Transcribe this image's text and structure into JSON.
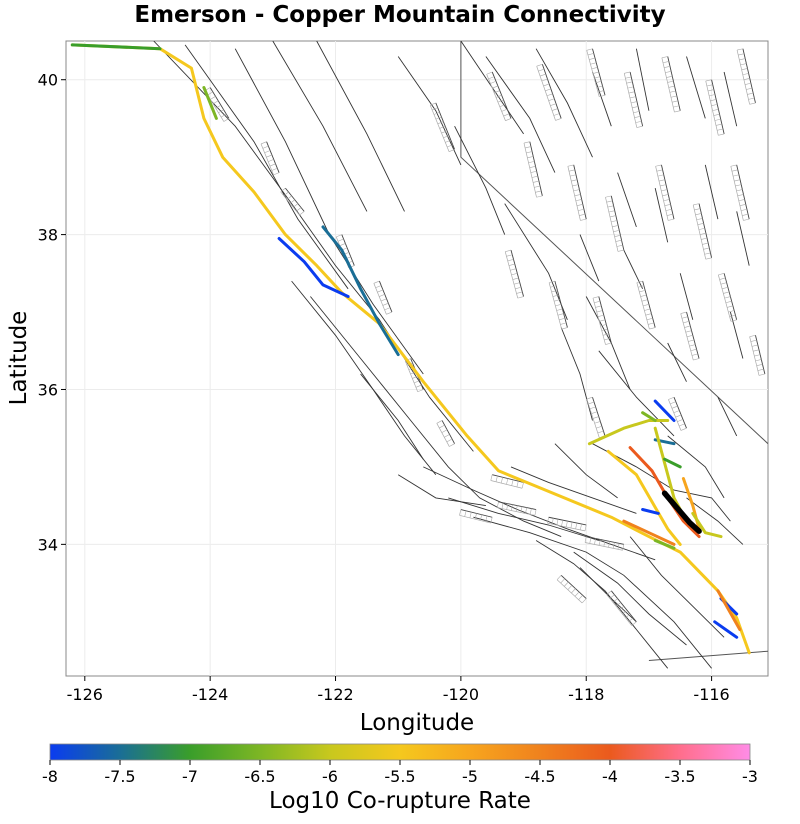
{
  "title": "Emerson - Copper Mountain Connectivity",
  "x_axis": {
    "label": "Longitude",
    "ticks": [
      "-126",
      "-124",
      "-122",
      "-120",
      "-118",
      "-116"
    ],
    "tick_values": [
      -126,
      -124,
      -122,
      -120,
      -118,
      -116
    ],
    "range": [
      -126.3,
      -115.1
    ]
  },
  "y_axis": {
    "label": "Latitude",
    "ticks": [
      "34",
      "36",
      "38",
      "40"
    ],
    "tick_values": [
      34,
      36,
      38,
      40
    ],
    "range": [
      32.3,
      40.5
    ]
  },
  "colorbar": {
    "label": "Log10 Co-rupture Rate",
    "ticks": [
      "-8",
      "-7.5",
      "-7",
      "-6.5",
      "-6",
      "-5.5",
      "-5",
      "-4.5",
      "-4",
      "-3.5",
      "-3"
    ],
    "tick_values": [
      -8,
      -7.5,
      -7,
      -6.5,
      -6,
      -5.5,
      -5,
      -4.5,
      -4,
      -3.5,
      -3
    ],
    "range": [
      -8,
      -3
    ],
    "stops": [
      {
        "v": -8,
        "color": "#0a3cf0"
      },
      {
        "v": -7.5,
        "color": "#1a6e96"
      },
      {
        "v": -7,
        "color": "#3a9e2a"
      },
      {
        "v": -6.5,
        "color": "#7db624"
      },
      {
        "v": -6,
        "color": "#c8c81e"
      },
      {
        "v": -5.5,
        "color": "#f5c81e"
      },
      {
        "v": -5,
        "color": "#f7a51e"
      },
      {
        "v": -4.5,
        "color": "#f0821e"
      },
      {
        "v": -4,
        "color": "#eb5a1e"
      },
      {
        "v": -3.5,
        "color": "#ff6e8c"
      },
      {
        "v": -3,
        "color": "#ff8ce6"
      }
    ]
  },
  "source_fault_color": "#000000",
  "source_fault": {
    "name": "Emerson - Copper Mountain",
    "points": [
      [
        -116.75,
        34.66
      ],
      [
        -116.55,
        34.47
      ],
      [
        -116.35,
        34.28
      ],
      [
        -116.2,
        34.17
      ]
    ]
  },
  "colored_faults": [
    {
      "value": -5.3,
      "points": [
        [
          -126.2,
          40.45
        ],
        [
          -124.8,
          40.4
        ],
        [
          -124.3,
          40.15
        ],
        [
          -124.1,
          39.5
        ],
        [
          -123.8,
          39.0
        ],
        [
          -123.3,
          38.55
        ],
        [
          -122.8,
          38.0
        ],
        [
          -122.3,
          37.6
        ],
        [
          -121.9,
          37.25
        ],
        [
          -121.3,
          36.85
        ],
        [
          -120.6,
          36.1
        ],
        [
          -119.9,
          35.4
        ],
        [
          -119.4,
          34.95
        ],
        [
          -118.8,
          34.75
        ],
        [
          -117.6,
          34.35
        ],
        [
          -117.0,
          34.1
        ],
        [
          -116.5,
          33.9
        ],
        [
          -115.9,
          33.4
        ],
        [
          -115.6,
          33.05
        ],
        [
          -115.4,
          32.6
        ]
      ]
    },
    {
      "value": -7.2,
      "points": [
        [
          -126.2,
          40.45
        ],
        [
          -124.8,
          40.4
        ]
      ]
    },
    {
      "value": -6.5,
      "points": [
        [
          -124.1,
          39.9
        ],
        [
          -123.9,
          39.5
        ]
      ]
    },
    {
      "value": -8.0,
      "points": [
        [
          -122.9,
          37.95
        ],
        [
          -122.5,
          37.65
        ],
        [
          -122.2,
          37.35
        ],
        [
          -121.8,
          37.2
        ]
      ]
    },
    {
      "value": -7.3,
      "points": [
        [
          -122.2,
          38.1
        ],
        [
          -121.9,
          37.8
        ],
        [
          -121.6,
          37.3
        ],
        [
          -121.3,
          36.85
        ],
        [
          -121.0,
          36.45
        ]
      ]
    },
    {
      "value": -5.9,
      "points": [
        [
          -117.95,
          35.3
        ],
        [
          -117.4,
          35.5
        ],
        [
          -117.0,
          35.6
        ],
        [
          -116.7,
          35.6
        ]
      ]
    },
    {
      "value": -6.6,
      "points": [
        [
          -117.1,
          35.7
        ],
        [
          -116.9,
          35.6
        ]
      ]
    },
    {
      "value": -7.9,
      "points": [
        [
          -116.9,
          35.85
        ],
        [
          -116.6,
          35.6
        ]
      ]
    },
    {
      "value": -7.5,
      "points": [
        [
          -116.9,
          35.35
        ],
        [
          -116.6,
          35.3
        ]
      ]
    },
    {
      "value": -5.6,
      "points": [
        [
          -117.65,
          35.2
        ],
        [
          -117.2,
          34.9
        ],
        [
          -116.95,
          34.55
        ],
        [
          -116.7,
          34.2
        ],
        [
          -116.5,
          34.0
        ]
      ]
    },
    {
      "value": -4.1,
      "points": [
        [
          -117.3,
          35.25
        ],
        [
          -116.95,
          34.95
        ],
        [
          -116.7,
          34.6
        ],
        [
          -116.45,
          34.3
        ],
        [
          -116.2,
          34.1
        ]
      ]
    },
    {
      "value": -5.8,
      "points": [
        [
          -116.9,
          35.5
        ],
        [
          -116.75,
          35.05
        ],
        [
          -116.6,
          34.6
        ],
        [
          -116.4,
          34.3
        ]
      ]
    },
    {
      "value": -5.1,
      "points": [
        [
          -116.45,
          34.85
        ],
        [
          -116.3,
          34.5
        ],
        [
          -116.2,
          34.2
        ]
      ]
    },
    {
      "value": -6.8,
      "points": [
        [
          -116.75,
          35.1
        ],
        [
          -116.5,
          35.0
        ]
      ]
    },
    {
      "value": -6.2,
      "points": [
        [
          -116.3,
          34.4
        ],
        [
          -116.1,
          34.15
        ],
        [
          -115.85,
          34.1
        ]
      ]
    },
    {
      "value": -8.0,
      "points": [
        [
          -117.1,
          34.45
        ],
        [
          -116.85,
          34.4
        ]
      ]
    },
    {
      "value": -4.7,
      "points": [
        [
          -117.4,
          34.3
        ],
        [
          -117.0,
          34.15
        ],
        [
          -116.6,
          34.0
        ]
      ]
    },
    {
      "value": -6.3,
      "points": [
        [
          -116.9,
          34.05
        ],
        [
          -116.6,
          33.95
        ]
      ]
    },
    {
      "value": -8.0,
      "points": [
        [
          -115.85,
          33.3
        ],
        [
          -115.6,
          33.1
        ]
      ]
    },
    {
      "value": -8.0,
      "points": [
        [
          -115.95,
          33.0
        ],
        [
          -115.6,
          32.8
        ]
      ]
    },
    {
      "value": -4.3,
      "points": [
        [
          -115.9,
          33.4
        ],
        [
          -115.55,
          32.9
        ]
      ]
    }
  ],
  "background_faults": [
    [
      [
        -124.9,
        40.5
      ],
      [
        -123.6,
        39.4
      ],
      [
        -122.7,
        38.4
      ],
      [
        -122.0,
        37.6
      ],
      [
        -121.3,
        36.9
      ],
      [
        -120.5,
        35.9
      ],
      [
        -119.8,
        35.2
      ]
    ],
    [
      [
        -124.4,
        40.45
      ],
      [
        -123.3,
        39.2
      ],
      [
        -122.6,
        38.2
      ],
      [
        -121.8,
        37.3
      ]
    ],
    [
      [
        -123.6,
        40.4
      ],
      [
        -122.8,
        39.2
      ],
      [
        -122.1,
        38.0
      ],
      [
        -121.4,
        37.1
      ],
      [
        -120.6,
        36.2
      ]
    ],
    [
      [
        -123.0,
        40.5
      ],
      [
        -122.2,
        39.4
      ],
      [
        -121.5,
        38.3
      ]
    ],
    [
      [
        -122.3,
        40.5
      ],
      [
        -121.5,
        39.3
      ],
      [
        -120.9,
        38.3
      ]
    ],
    [
      [
        -122.7,
        37.4
      ],
      [
        -122.0,
        36.7
      ],
      [
        -121.4,
        36.0
      ],
      [
        -120.9,
        35.4
      ],
      [
        -120.4,
        34.9
      ]
    ],
    [
      [
        -122.4,
        37.2
      ],
      [
        -121.6,
        36.4
      ],
      [
        -120.8,
        35.6
      ],
      [
        -120.2,
        35.0
      ],
      [
        -119.7,
        34.6
      ],
      [
        -119.0,
        34.3
      ],
      [
        -118.4,
        34.1
      ]
    ],
    [
      [
        -120.6,
        35.0
      ],
      [
        -119.8,
        34.7
      ],
      [
        -119.1,
        34.45
      ],
      [
        -118.3,
        34.2
      ],
      [
        -117.6,
        34.0
      ],
      [
        -116.9,
        33.8
      ]
    ],
    [
      [
        -120.2,
        34.6
      ],
      [
        -119.4,
        34.4
      ],
      [
        -118.6,
        34.25
      ],
      [
        -117.8,
        34.05
      ]
    ],
    [
      [
        -119.8,
        34.35
      ],
      [
        -118.9,
        34.15
      ],
      [
        -118.0,
        33.9
      ],
      [
        -117.4,
        33.6
      ],
      [
        -116.6,
        33.0
      ],
      [
        -116.0,
        32.4
      ]
    ],
    [
      [
        -118.8,
        34.05
      ],
      [
        -118.2,
        33.75
      ],
      [
        -117.7,
        33.4
      ],
      [
        -117.2,
        32.9
      ],
      [
        -116.7,
        32.4
      ]
    ],
    [
      [
        -118.2,
        33.9
      ],
      [
        -117.5,
        33.5
      ],
      [
        -117.0,
        33.1
      ],
      [
        -116.4,
        32.7
      ]
    ],
    [
      [
        -117.3,
        34.1
      ],
      [
        -116.8,
        33.6
      ],
      [
        -116.3,
        33.2
      ],
      [
        -115.8,
        32.8
      ]
    ],
    [
      [
        -117.9,
        35.3
      ],
      [
        -117.2,
        35.0
      ],
      [
        -116.6,
        34.7
      ],
      [
        -116.0,
        34.6
      ],
      [
        -115.7,
        34.3
      ]
    ],
    [
      [
        -118.5,
        35.3
      ],
      [
        -118.0,
        34.9
      ],
      [
        -117.5,
        34.6
      ]
    ],
    [
      [
        -119.2,
        35.0
      ],
      [
        -118.6,
        34.8
      ],
      [
        -117.9,
        34.6
      ],
      [
        -117.2,
        34.4
      ]
    ],
    [
      [
        -116.7,
        35.4
      ],
      [
        -116.1,
        35.0
      ],
      [
        -115.8,
        34.6
      ]
    ],
    [
      [
        -118.4,
        36.8
      ],
      [
        -118.1,
        36.2
      ],
      [
        -117.9,
        35.6
      ]
    ],
    [
      [
        -118.0,
        37.2
      ],
      [
        -117.6,
        36.6
      ],
      [
        -117.3,
        36.0
      ]
    ],
    [
      [
        -117.8,
        36.5
      ],
      [
        -117.2,
        35.9
      ],
      [
        -116.6,
        35.4
      ]
    ],
    [
      [
        -119.3,
        38.4
      ],
      [
        -118.6,
        37.5
      ],
      [
        -118.3,
        36.9
      ]
    ],
    [
      [
        -120.1,
        39.4
      ],
      [
        -119.6,
        38.6
      ],
      [
        -119.3,
        38.0
      ]
    ],
    [
      [
        -121.0,
        40.3
      ],
      [
        -120.4,
        39.6
      ],
      [
        -120.0,
        38.9
      ]
    ],
    [
      [
        -119.6,
        40.3
      ],
      [
        -118.9,
        39.5
      ],
      [
        -118.5,
        38.8
      ]
    ],
    [
      [
        -118.8,
        40.4
      ],
      [
        -118.3,
        39.7
      ],
      [
        -117.9,
        39.0
      ]
    ],
    [
      [
        -120.0,
        40.5
      ],
      [
        -119.5,
        39.9
      ],
      [
        -119.0,
        39.3
      ]
    ],
    [
      [
        -117.9,
        40.1
      ],
      [
        -117.6,
        39.4
      ]
    ],
    [
      [
        -117.2,
        40.4
      ],
      [
        -117.0,
        39.6
      ]
    ],
    [
      [
        -116.4,
        40.3
      ],
      [
        -116.1,
        39.5
      ]
    ],
    [
      [
        -115.8,
        40.1
      ],
      [
        -115.6,
        39.4
      ]
    ],
    [
      [
        -117.5,
        38.8
      ],
      [
        -117.2,
        38.1
      ]
    ],
    [
      [
        -116.9,
        38.6
      ],
      [
        -116.7,
        37.9
      ]
    ],
    [
      [
        -116.1,
        38.9
      ],
      [
        -115.9,
        38.2
      ]
    ],
    [
      [
        -115.6,
        38.3
      ],
      [
        -115.4,
        37.6
      ]
    ],
    [
      [
        -117.4,
        37.8
      ],
      [
        -117.1,
        37.3
      ]
    ],
    [
      [
        -116.5,
        37.5
      ],
      [
        -116.3,
        36.9
      ]
    ],
    [
      [
        -115.7,
        37.0
      ],
      [
        -115.5,
        36.4
      ]
    ],
    [
      [
        -118.1,
        38.0
      ],
      [
        -117.8,
        37.4
      ]
    ],
    [
      [
        -116.7,
        36.6
      ],
      [
        -116.4,
        36.1
      ]
    ],
    [
      [
        -115.9,
        35.9
      ],
      [
        -115.6,
        35.4
      ]
    ],
    [
      [
        -121.6,
        36.2
      ],
      [
        -121.0,
        35.6
      ],
      [
        -120.6,
        35.1
      ]
    ],
    [
      [
        -121.0,
        34.9
      ],
      [
        -120.4,
        34.6
      ],
      [
        -119.6,
        34.5
      ]
    ],
    [
      [
        -118.1,
        33.7
      ],
      [
        -117.6,
        33.3
      ],
      [
        -117.2,
        33.0
      ]
    ],
    [
      [
        -116.4,
        34.6
      ],
      [
        -115.9,
        34.3
      ],
      [
        -115.5,
        34.0
      ]
    ]
  ],
  "dip_faults": [
    [
      [
        -124.0,
        39.9
      ],
      [
        -123.7,
        39.5
      ]
    ],
    [
      [
        -123.1,
        39.2
      ],
      [
        -122.9,
        38.8
      ]
    ],
    [
      [
        -122.8,
        38.6
      ],
      [
        -122.5,
        38.3
      ]
    ],
    [
      [
        -121.9,
        38.0
      ],
      [
        -121.7,
        37.6
      ]
    ],
    [
      [
        -121.3,
        37.4
      ],
      [
        -121.1,
        37.0
      ]
    ],
    [
      [
        -120.8,
        36.4
      ],
      [
        -120.6,
        36.0
      ]
    ],
    [
      [
        -120.3,
        35.6
      ],
      [
        -120.1,
        35.3
      ]
    ],
    [
      [
        -119.5,
        34.9
      ],
      [
        -119.0,
        34.8
      ]
    ],
    [
      [
        -119.4,
        34.55
      ],
      [
        -118.8,
        34.45
      ]
    ],
    [
      [
        -118.6,
        34.35
      ],
      [
        -118.0,
        34.25
      ]
    ],
    [
      [
        -118.0,
        34.1
      ],
      [
        -117.4,
        34.0
      ]
    ],
    [
      [
        -120.0,
        34.45
      ],
      [
        -119.5,
        34.35
      ]
    ],
    [
      [
        -118.4,
        33.6
      ],
      [
        -118.0,
        33.3
      ]
    ],
    [
      [
        -117.6,
        33.4
      ],
      [
        -117.2,
        33.0
      ]
    ],
    [
      [
        -120.4,
        39.7
      ],
      [
        -120.1,
        39.1
      ]
    ],
    [
      [
        -119.5,
        40.1
      ],
      [
        -119.2,
        39.5
      ]
    ],
    [
      [
        -118.7,
        40.2
      ],
      [
        -118.4,
        39.5
      ]
    ],
    [
      [
        -117.9,
        40.4
      ],
      [
        -117.7,
        39.8
      ]
    ],
    [
      [
        -117.3,
        40.1
      ],
      [
        -117.1,
        39.4
      ]
    ],
    [
      [
        -116.7,
        40.3
      ],
      [
        -116.5,
        39.6
      ]
    ],
    [
      [
        -116.0,
        40.0
      ],
      [
        -115.8,
        39.3
      ]
    ],
    [
      [
        -115.5,
        40.4
      ],
      [
        -115.3,
        39.7
      ]
    ],
    [
      [
        -118.9,
        39.2
      ],
      [
        -118.7,
        38.5
      ]
    ],
    [
      [
        -118.2,
        38.9
      ],
      [
        -118.0,
        38.2
      ]
    ],
    [
      [
        -117.6,
        38.5
      ],
      [
        -117.4,
        37.8
      ]
    ],
    [
      [
        -116.8,
        38.9
      ],
      [
        -116.6,
        38.2
      ]
    ],
    [
      [
        -116.2,
        38.4
      ],
      [
        -116.0,
        37.7
      ]
    ],
    [
      [
        -115.6,
        38.9
      ],
      [
        -115.4,
        38.2
      ]
    ],
    [
      [
        -119.2,
        37.8
      ],
      [
        -119.0,
        37.2
      ]
    ],
    [
      [
        -118.5,
        37.4
      ],
      [
        -118.3,
        36.8
      ]
    ],
    [
      [
        -117.8,
        37.2
      ],
      [
        -117.6,
        36.6
      ]
    ],
    [
      [
        -117.1,
        37.4
      ],
      [
        -116.9,
        36.8
      ]
    ],
    [
      [
        -116.4,
        37.0
      ],
      [
        -116.2,
        36.4
      ]
    ],
    [
      [
        -115.8,
        37.5
      ],
      [
        -115.6,
        36.9
      ]
    ],
    [
      [
        -115.3,
        36.7
      ],
      [
        -115.15,
        36.2
      ]
    ],
    [
      [
        -117.9,
        35.9
      ],
      [
        -117.7,
        35.4
      ]
    ],
    [
      [
        -116.6,
        35.9
      ],
      [
        -116.4,
        35.5
      ]
    ]
  ],
  "boundary_lines": [
    [
      [
        -120.0,
        40.5
      ],
      [
        -120.0,
        39.0
      ],
      [
        -115.1,
        35.3
      ]
    ],
    [
      [
        -117.0,
        32.5
      ],
      [
        -115.1,
        32.62
      ]
    ]
  ]
}
